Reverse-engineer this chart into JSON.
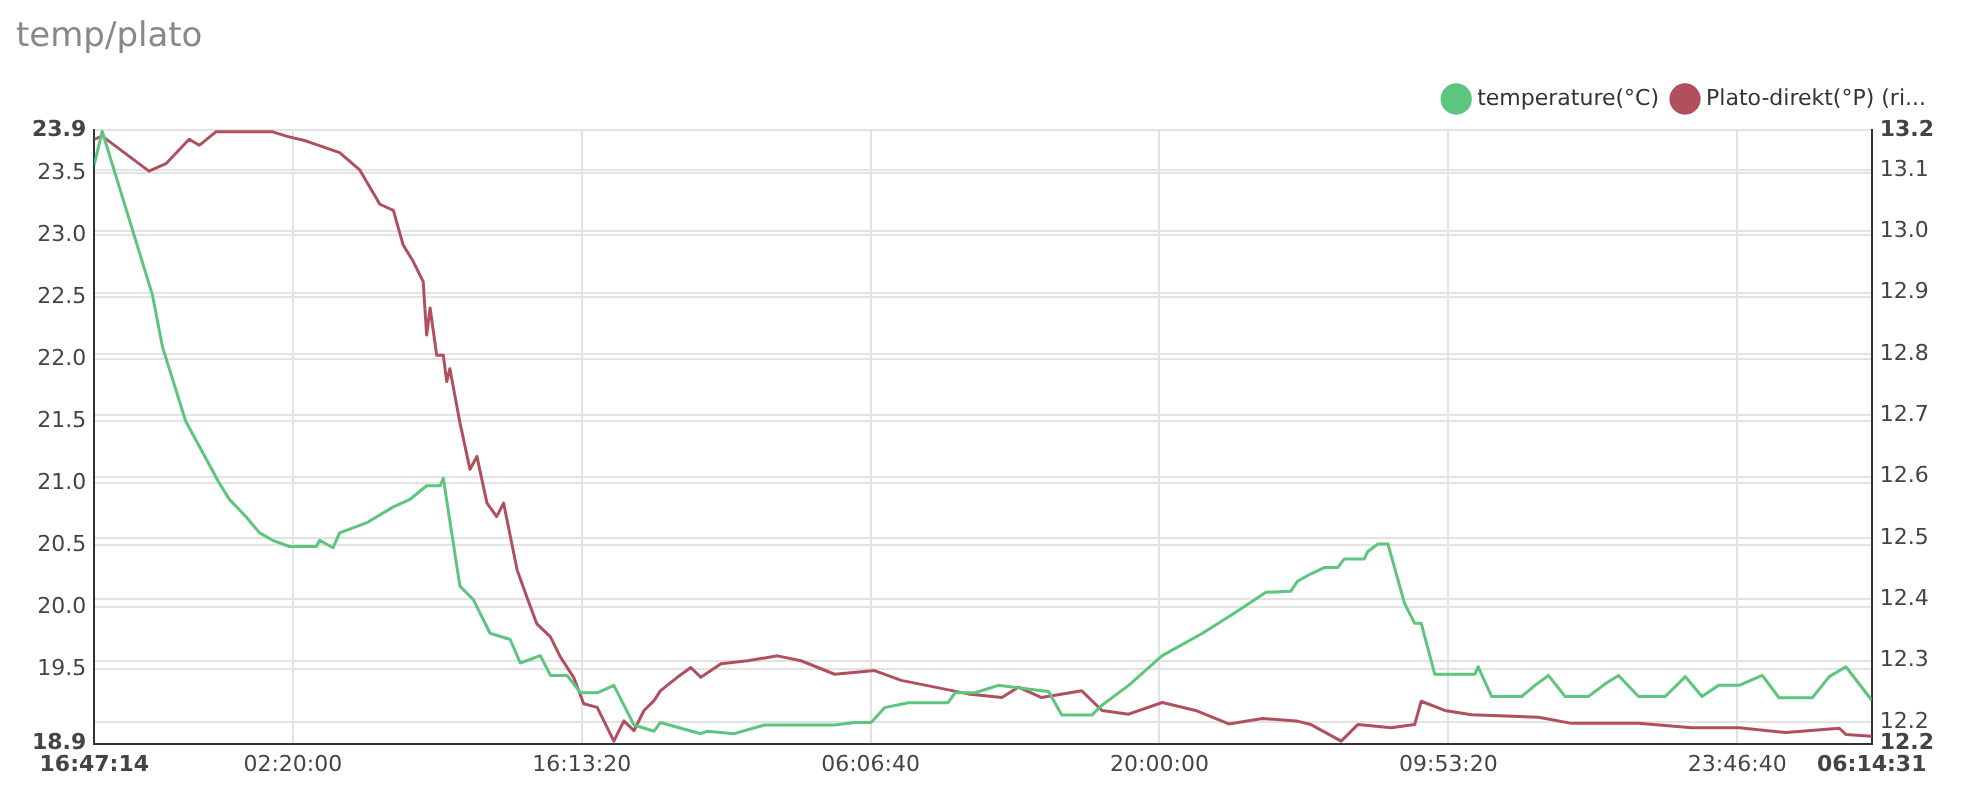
{
  "chart_data": {
    "type": "line",
    "title": "temp/plato",
    "legend": "top right",
    "grid": true,
    "marker": "none",
    "line_style": "solid",
    "xlim": [
      "--01-01T16:47:14",
      "--01-05T06:14:31"
    ],
    "xticks": [
      {
        "value": "--01-01T16:47:14",
        "label": "16:47:14"
      },
      {
        "value": "--01-02T02:20:00",
        "label": "02:20:00"
      },
      {
        "value": "--01-02T16:13:20",
        "label": "16:13:20"
      },
      {
        "value": "--01-03T06:06:40",
        "label": "06:06:40"
      },
      {
        "value": "--01-03T20:00:00",
        "label": "20:00:00"
      },
      {
        "value": "--01-04T09:53:20",
        "label": "09:53:20"
      },
      {
        "value": "--01-04T23:46:40",
        "label": "23:46:40"
      },
      {
        "value": "--01-05T06:14:31",
        "label": "06:14:31"
      }
    ],
    "ylim": [
      18.9,
      23.85
    ],
    "yticks": [
      18.9,
      19.5,
      {
        "value": 20,
        "label": "20.0"
      },
      20.5,
      {
        "value": 21,
        "label": "21.0"
      },
      21.5,
      {
        "value": 22,
        "label": "22.0"
      },
      22.5,
      {
        "value": 23,
        "label": "23.0"
      },
      23.5,
      {
        "value": 23.85,
        "label": "23.9"
      }
    ],
    "y2lim": [
      12.165,
      13.165
    ],
    "y2ticks": [
      {
        "value": 12.165,
        "label": "12.2"
      },
      12.2,
      12.3,
      12.4,
      12.5,
      12.6,
      12.7,
      12.8,
      12.9,
      {
        "value": 13,
        "label": "13.0"
      },
      13.1,
      {
        "value": 13.165,
        "label": "13.2"
      }
    ],
    "series": [
      {
        "name": "temperature(°C)",
        "color": "#5cc57e",
        "x": [
          "--01-01T16:47:14",
          "--01-01T17:10",
          "--01-01T19:35",
          "--01-01T20:04",
          "--01-01T21:11",
          "--01-01T22:48",
          "--01-01T23:17",
          "--01-02T00:05",
          "--01-02T00:44",
          "--01-02T01:22",
          "--01-02T02:10",
          "--01-02T03:28",
          "--01-02T03:37",
          "--01-02T04:16",
          "--01-02T04:35",
          "--01-02T05:52",
          "--01-02T07:10",
          "--01-02T07:58",
          "--01-02T08:46",
          "--01-02T09:25",
          "--01-02T09:34",
          "--01-02T10:22",
          "--01-02T11:01",
          "--01-02T11:49",
          "--01-02T12:47",
          "--01-02T13:16",
          "--01-02T14:14",
          "--01-02T14:43",
          "--01-02T15:31",
          "--01-02T16:10",
          "--01-02T16:58",
          "--01-02T17:46",
          "--01-02T18:44",
          "--01-02T19:42",
          "--01-02T20:00",
          "--01-02T21:57",
          "--01-02T22:16",
          "--01-02T23:33",
          "--01-03T01:00",
          "--01-03T04:23",
          "--01-03T05:20",
          "--01-03T06:08",
          "--01-03T06:47",
          "--01-03T07:55",
          "--01-03T09:50",
          "--01-03T10:10",
          "--01-03T11:08",
          "--01-03T12:15",
          "--01-03T14:40",
          "--01-03T15:18",
          "--01-03T16:45",
          "--01-03T17:14",
          "--01-03T18:31",
          "--01-03T20:08",
          "--01-03T22:04",
          "--01-03T23:40",
          "--01-04T01:07",
          "--01-04T02:19",
          "--01-04T02:38",
          "--01-04T03:17",
          "--01-04T03:55",
          "--01-04T04:34",
          "--01-04T04:53",
          "--01-04T05:51",
          "--01-04T06:01",
          "--01-04T06:30",
          "--01-04T06:59",
          "--01-04T07:47",
          "--01-04T08:16",
          "--01-04T08:35",
          "--01-04T09:14",
          "--01-04T11:10",
          "--01-04T11:19",
          "--01-04T11:58",
          "--01-04T13:25",
          "--01-04T14:03",
          "--01-04T14:42",
          "--01-04T15:30",
          "--01-04T16:37",
          "--01-04T17:25",
          "--01-04T18:04",
          "--01-04T19:02",
          "--01-04T20:19",
          "--01-04T21:17",
          "--01-04T22:05",
          "--01-04T22:53",
          "--01-04T23:52",
          "--01-05T00:59",
          "--01-05T01:47",
          "--01-05T03:23",
          "--01-05T04:12",
          "--01-05T05:00",
          "--01-05T06:14:31"
        ],
        "values": [
          23.57,
          23.84,
          22.52,
          22.1,
          21.5,
          21.0,
          20.87,
          20.73,
          20.6,
          20.54,
          20.49,
          20.49,
          20.54,
          20.48,
          20.6,
          20.68,
          20.81,
          20.87,
          20.98,
          20.98,
          21.04,
          20.17,
          20.06,
          19.79,
          19.74,
          19.55,
          19.61,
          19.45,
          19.45,
          19.31,
          19.31,
          19.37,
          19.05,
          19.0,
          19.07,
          18.98,
          19.0,
          18.98,
          19.05,
          19.05,
          19.07,
          19.07,
          19.19,
          19.23,
          19.23,
          19.31,
          19.31,
          19.37,
          19.32,
          19.13,
          19.13,
          19.21,
          19.37,
          19.61,
          19.79,
          19.96,
          20.12,
          20.13,
          20.21,
          20.27,
          20.32,
          20.32,
          20.39,
          20.39,
          20.45,
          20.51,
          20.51,
          20.03,
          19.87,
          19.87,
          19.46,
          19.46,
          19.52,
          19.28,
          19.28,
          19.37,
          19.45,
          19.28,
          19.28,
          19.38,
          19.45,
          19.28,
          19.28,
          19.44,
          19.28,
          19.37,
          19.37,
          19.45,
          19.27,
          19.27,
          19.44,
          19.52,
          19.25
        ]
      },
      {
        "name": "Plato-direkt(°P) (ri...",
        "color": "#b0505e",
        "axis": "y2",
        "x": [
          "--01-01T16:47:14",
          "--01-01T17:10",
          "--01-01T19:25",
          "--01-01T20:14",
          "--01-01T21:21",
          "--01-01T21:50",
          "--01-01T22:38",
          "--01-02T01:22",
          "--01-02T02:01",
          "--01-02T02:59",
          "--01-02T04:35",
          "--01-02T05:33",
          "--01-02T06:31",
          "--01-02T07:10",
          "--01-02T07:38",
          "--01-02T08:07",
          "--01-02T08:36",
          "--01-02T08:46",
          "--01-02T08:56",
          "--01-02T09:15",
          "--01-02T09:34",
          "--01-02T09:44",
          "--01-02T09:53",
          "--01-02T10:22",
          "--01-02T10:51",
          "--01-02T11:11",
          "--01-02T11:40",
          "--01-02T12:08",
          "--01-02T12:28",
          "--01-02T13:07",
          "--01-02T13:35",
          "--01-02T14:04",
          "--01-02T14:43",
          "--01-02T15:12",
          "--01-02T15:50",
          "--01-02T16:19",
          "--01-02T16:58",
          "--01-02T17:46",
          "--01-02T18:15",
          "--01-02T18:44",
          "--01-02T19:13",
          "--01-02T19:42",
          "--01-02T20:00",
          "--01-02T20:49",
          "--01-02T21:28",
          "--01-02T21:57",
          "--01-02T22:55",
          "--01-03T00:12",
          "--01-03T01:38",
          "--01-03T02:46",
          "--01-03T04:23",
          "--01-03T06:18",
          "--01-03T07:35",
          "--01-03T09:12",
          "--01-03T10:48",
          "--01-03T12:25",
          "--01-03T13:13",
          "--01-03T14:20",
          "--01-03T16:16",
          "--01-03T17:14",
          "--01-03T18:31",
          "--01-03T20:08",
          "--01-03T21:44",
          "--01-03T23:20",
          "--01-04T00:57",
          "--01-04T02:34",
          "--01-04T03:17",
          "--01-04T04:44",
          "--01-04T05:32",
          "--01-04T07:08",
          "--01-04T08:16",
          "--01-04T08:35",
          "--01-04T09:43",
          "--01-04T11:00",
          "--01-04T14:13",
          "--01-04T15:49",
          "--01-04T19:02",
          "--01-04T21:36",
          "--01-04T23:52",
          "--01-05T02:06",
          "--01-05T04:41",
          "--01-05T05:00",
          "--01-05T06:14:31"
        ],
        "values": [
          13.15,
          13.155,
          13.098,
          13.11,
          13.15,
          13.14,
          13.162,
          13.162,
          13.155,
          13.147,
          13.128,
          13.1,
          13.044,
          13.034,
          12.978,
          12.951,
          12.918,
          12.831,
          12.875,
          12.798,
          12.798,
          12.755,
          12.776,
          12.688,
          12.612,
          12.633,
          12.557,
          12.535,
          12.557,
          12.448,
          12.404,
          12.36,
          12.339,
          12.306,
          12.273,
          12.23,
          12.224,
          12.169,
          12.202,
          12.186,
          12.219,
          12.235,
          12.251,
          12.273,
          12.289,
          12.273,
          12.295,
          12.3,
          12.308,
          12.3,
          12.278,
          12.284,
          12.268,
          12.257,
          12.246,
          12.24,
          12.257,
          12.24,
          12.251,
          12.219,
          12.213,
          12.232,
          12.219,
          12.197,
          12.206,
          12.202,
          12.196,
          12.169,
          12.196,
          12.191,
          12.196,
          12.234,
          12.219,
          12.212,
          12.208,
          12.198,
          12.198,
          12.191,
          12.191,
          12.183,
          12.19,
          12.18,
          12.177
        ]
      }
    ]
  }
}
